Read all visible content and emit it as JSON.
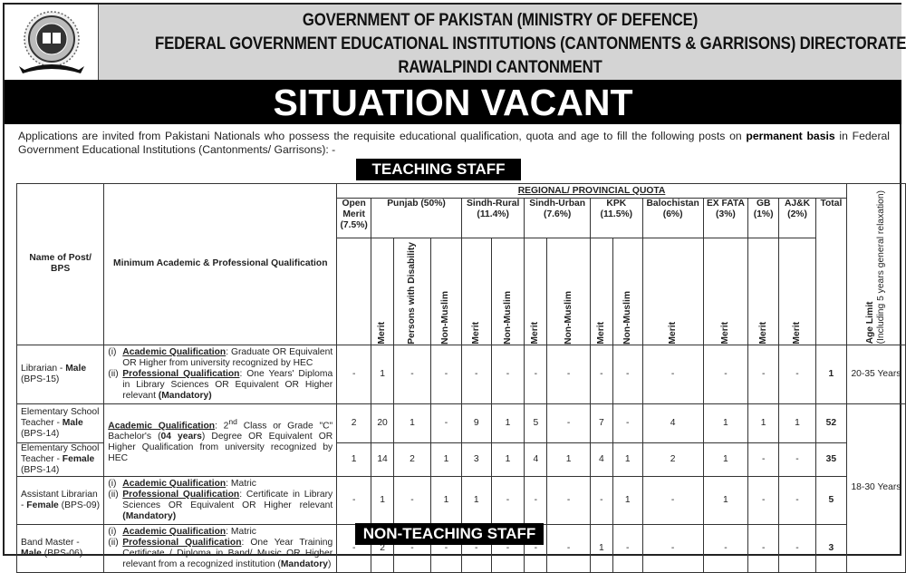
{
  "header": {
    "line1": "GOVERNMENT OF PAKISTAN (MINISTRY OF DEFENCE)",
    "line2": "FEDERAL GOVERNMENT EDUCATIONAL INSTITUTIONS (CANTONMENTS & GARRISONS) DIRECTORATE",
    "line3": "RAWALPINDI CANTONMENT",
    "logo_text": "FGEI (C/G)"
  },
  "banner": "SITUATION VACANT",
  "intro": {
    "before": "Applications are invited from Pakistani Nationals who possess the requisite educational qualification, quota and age to fill the following posts on ",
    "bold": "permanent basis",
    "after": " in Federal Government Educational Institutions (Cantonments/ Garrisons): -"
  },
  "sections": {
    "teaching": "TEACHING STAFF",
    "non_teaching": "NON-TEACHING STAFF"
  },
  "table": {
    "col_name": "Name of Post/ BPS",
    "col_qual": "Minimum Academic & Professional Qualification",
    "regional_title": "REGIONAL/ PROVINCIAL QUOTA",
    "regions": [
      {
        "label": "Open Merit (7.5%)",
        "subs": [
          ""
        ]
      },
      {
        "label": "Punjab (50%)",
        "subs": [
          "Merit",
          "Persons with Disability",
          "Non-Muslim"
        ]
      },
      {
        "label": "Sindh-Rural (11.4%)",
        "subs": [
          "Merit",
          "Non-Muslim"
        ]
      },
      {
        "label": "Sindh-Urban (7.6%)",
        "subs": [
          "Merit",
          "Non-Muslim"
        ]
      },
      {
        "label": "KPK (11.5%)",
        "subs": [
          "Merit",
          "Non-Muslim"
        ]
      },
      {
        "label": "Balochistan (6%)",
        "subs": [
          "Merit"
        ]
      },
      {
        "label": "EX FATA (3%)",
        "subs": [
          "Merit"
        ]
      },
      {
        "label": "GB (1%)",
        "subs": [
          "Merit"
        ]
      },
      {
        "label": "AJ&K (2%)",
        "subs": [
          "Merit"
        ]
      }
    ],
    "col_total": "Total",
    "age_title": "Age Limit",
    "age_note": "(Including 5 years general relaxation)",
    "rows": [
      {
        "name": {
          "title": "Librarian - ",
          "gender": "Male",
          "bps": "(BPS-15)"
        },
        "qual": [
          {
            "num": "(i)",
            "label": "Academic Qualification",
            "text": ": Graduate OR Equivalent OR Higher from university recognized by HEC",
            "bold": ""
          },
          {
            "num": "(ii)",
            "label": "Professional Qualification",
            "text": ": One Years' Diploma in Library Sciences OR Equivalent OR Higher relevant ",
            "bold": "(Mandatory)"
          }
        ],
        "values": [
          "-",
          "1",
          "-",
          "-",
          "-",
          "-",
          "-",
          "-",
          "-",
          "-",
          "-",
          "-",
          "-",
          "-"
        ],
        "total": "1",
        "age": "20-35 Years"
      },
      {
        "name": {
          "title": "Elementary School Teacher - ",
          "gender": "Male",
          "bps": "(BPS-14)"
        },
        "qual_shared": {
          "label": "Academic Qualification",
          "text1": ": 2",
          "sup": "nd",
          "text2": " Class or Grade \"C\" Bachelor's (",
          "bold": "04 years",
          "text3": ") Degree OR Equivalent OR Higher Qualification from university recognized by HEC"
        },
        "values": [
          "2",
          "20",
          "1",
          "-",
          "9",
          "1",
          "5",
          "-",
          "7",
          "-",
          "4",
          "1",
          "1",
          "1"
        ],
        "total": "52",
        "age": "18-30 Years"
      },
      {
        "name": {
          "title": "Elementary School Teacher - ",
          "gender": "Female",
          "bps": "(BPS-14)"
        },
        "values": [
          "1",
          "14",
          "2",
          "1",
          "3",
          "1",
          "4",
          "1",
          "4",
          "1",
          "2",
          "1",
          "-",
          "-"
        ],
        "total": "35"
      },
      {
        "name": {
          "title": "Assistant Librarian - ",
          "gender": "Female",
          "bps": "(BPS-09)"
        },
        "qual": [
          {
            "num": "(i)",
            "label": "Academic Qualification",
            "text": ": Matric",
            "bold": ""
          },
          {
            "num": "(ii)",
            "label": "Professional Qualification",
            "text": ": Certificate in Library Sciences OR Equivalent OR Higher relevant ",
            "bold": "(Mandatory)"
          }
        ],
        "values": [
          "-",
          "1",
          "-",
          "1",
          "1",
          "-",
          "-",
          "-",
          "-",
          "1",
          "-",
          "1",
          "-",
          "-"
        ],
        "total": "5"
      },
      {
        "name": {
          "title": "Band Master - ",
          "gender": "Male",
          "bps": "(BPS-06)"
        },
        "qual": [
          {
            "num": "(i)",
            "label": "Academic Qualification",
            "text": ": Matric",
            "bold": ""
          },
          {
            "num": "(ii)",
            "label": "Professional Qualification",
            "text": ": One Year Training Certificate / Diploma in Band/ Music OR Higher relevant from a recognized institution (",
            "bold": "Mandatory",
            "after": ")"
          }
        ],
        "values": [
          "-",
          "2",
          "-",
          "-",
          "-",
          "-",
          "-",
          "-",
          "1",
          "-",
          "-",
          "-",
          "-",
          "-"
        ],
        "total": "3"
      }
    ]
  }
}
